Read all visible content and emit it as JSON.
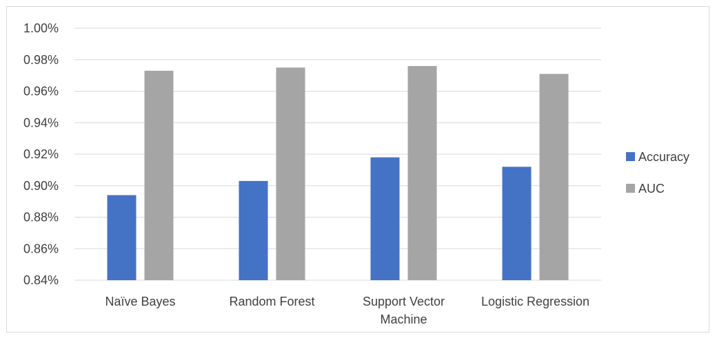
{
  "chart_data": {
    "type": "bar",
    "categories": [
      "Naïve Bayes",
      "Random Forest",
      "Support Vector Machine",
      "Logistic Regression"
    ],
    "category_lines": [
      [
        "Naïve Bayes"
      ],
      [
        "Random Forest"
      ],
      [
        "Support Vector",
        "Machine"
      ],
      [
        "Logistic Regression"
      ]
    ],
    "series": [
      {
        "name": "Accuracy",
        "color": "#4472c4",
        "values": [
          0.894,
          0.903,
          0.918,
          0.912
        ]
      },
      {
        "name": "AUC",
        "color": "#a5a5a5",
        "values": [
          0.973,
          0.975,
          0.976,
          0.971
        ]
      }
    ],
    "y_ticks": [
      "0.84%",
      "0.86%",
      "0.88%",
      "0.90%",
      "0.92%",
      "0.94%",
      "0.96%",
      "0.98%",
      "1.00%"
    ],
    "ylim": [
      0.84,
      1.0
    ],
    "y_step": 0.02,
    "grid": true,
    "legend_position": "right",
    "title": "",
    "xlabel": "",
    "ylabel": ""
  }
}
